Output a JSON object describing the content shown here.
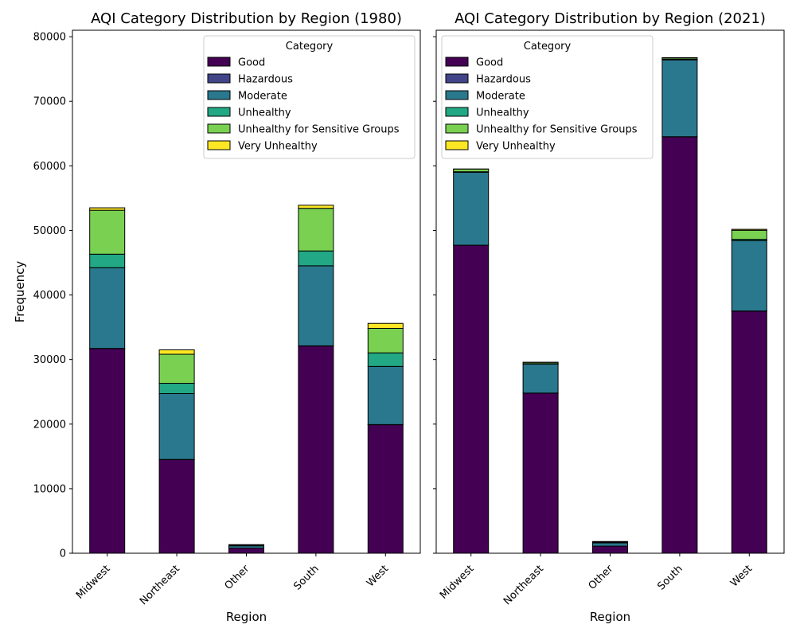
{
  "chart_data": [
    {
      "type": "bar",
      "stacked": true,
      "title": "AQI Category Distribution by Region (1980)",
      "xlabel": "Region",
      "ylabel": "Frequency",
      "ylim": [
        0,
        81000
      ],
      "yticks": [
        0,
        10000,
        20000,
        30000,
        40000,
        50000,
        60000,
        70000,
        80000
      ],
      "categories": [
        "Midwest",
        "Northeast",
        "Other",
        "South",
        "West"
      ],
      "legend_title": "Category",
      "legend_placement": "top-right",
      "series": [
        {
          "name": "Good",
          "color": "#440154",
          "values": [
            31700,
            14500,
            800,
            32100,
            19900
          ]
        },
        {
          "name": "Hazardous",
          "color": "#414487",
          "values": [
            20,
            20,
            0,
            20,
            30
          ]
        },
        {
          "name": "Moderate",
          "color": "#2a788e",
          "values": [
            12500,
            10200,
            350,
            12400,
            9000
          ]
        },
        {
          "name": "Unhealthy",
          "color": "#22a884",
          "values": [
            2100,
            1600,
            50,
            2300,
            2100
          ]
        },
        {
          "name": "Unhealthy for Sensitive Groups",
          "color": "#7ad151",
          "values": [
            6800,
            4500,
            100,
            6600,
            3800
          ]
        },
        {
          "name": "Very Unhealthy",
          "color": "#fde725",
          "values": [
            380,
            680,
            30,
            480,
            770
          ]
        }
      ]
    },
    {
      "type": "bar",
      "stacked": true,
      "title": "AQI Category Distribution by Region (2021)",
      "xlabel": "Region",
      "ylabel": "",
      "ylim": [
        0,
        81000
      ],
      "categories": [
        "Midwest",
        "Northeast",
        "Other",
        "South",
        "West"
      ],
      "legend_title": "Category",
      "legend_placement": "top-left",
      "series": [
        {
          "name": "Good",
          "color": "#440154",
          "values": [
            47700,
            24800,
            1100,
            64500,
            37500
          ]
        },
        {
          "name": "Hazardous",
          "color": "#414487",
          "values": [
            10,
            10,
            0,
            10,
            20
          ]
        },
        {
          "name": "Moderate",
          "color": "#2a788e",
          "values": [
            11300,
            4500,
            500,
            11900,
            10900
          ]
        },
        {
          "name": "Unhealthy",
          "color": "#22a884",
          "values": [
            80,
            50,
            100,
            100,
            200
          ]
        },
        {
          "name": "Unhealthy for Sensitive Groups",
          "color": "#7ad151",
          "values": [
            400,
            200,
            100,
            200,
            1400
          ]
        },
        {
          "name": "Very Unhealthy",
          "color": "#fde725",
          "values": [
            30,
            20,
            10,
            50,
            150
          ]
        }
      ]
    }
  ]
}
